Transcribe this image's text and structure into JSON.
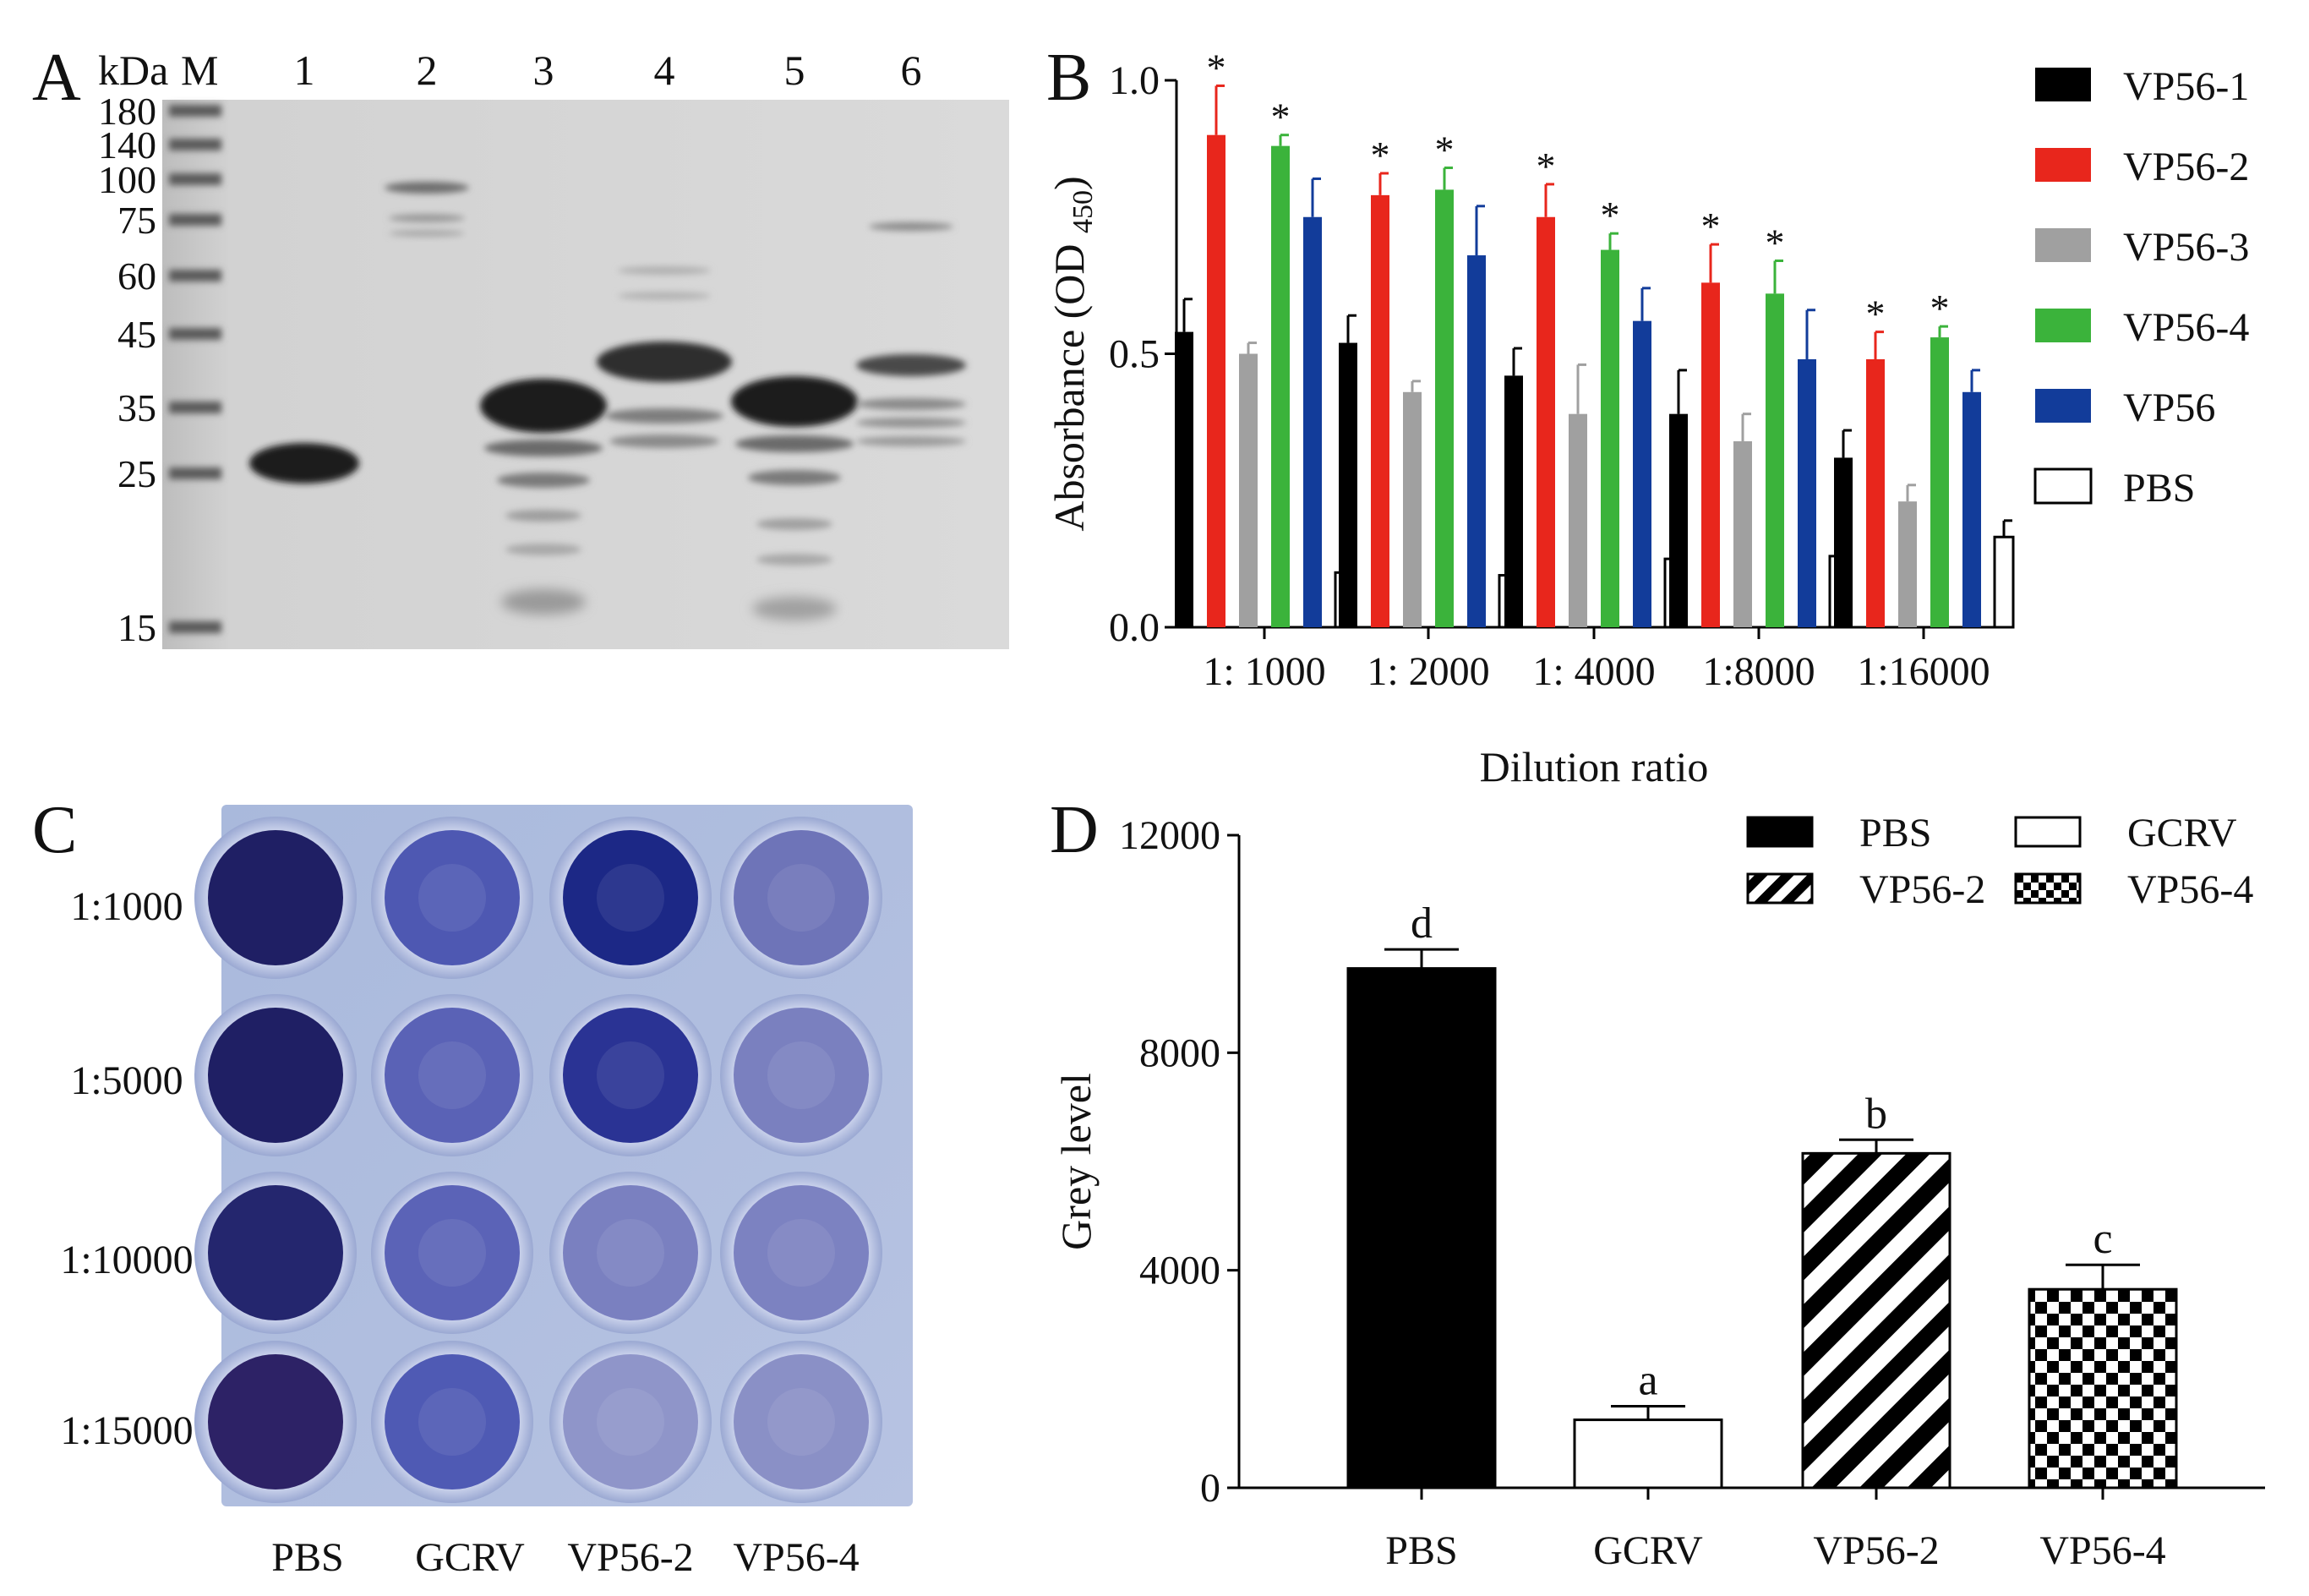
{
  "panels": {
    "A": "A",
    "B": "B",
    "C": "C",
    "D": "D"
  },
  "gel": {
    "kda_label": "kDa",
    "marker_label": "M",
    "lanes": [
      "1",
      "2",
      "3",
      "4",
      "5",
      "6"
    ],
    "marker_sizes": [
      "180",
      "140",
      "100",
      "75",
      "60",
      "45",
      "35",
      "25",
      "15"
    ]
  },
  "plate": {
    "row_labels": [
      "1:1000",
      "1:5000",
      "1:10000",
      "1:15000"
    ],
    "col_labels": [
      "PBS",
      "GCRV",
      "VP56-2",
      "VP56-4"
    ],
    "well_colors": [
      [
        "#1f1f64",
        "#4e58b2",
        "#1c2886",
        "#6e74b8"
      ],
      [
        "#1f1f64",
        "#5a62b6",
        "#2a3394",
        "#7a80bf"
      ],
      [
        "#24266e",
        "#5b63b7",
        "#7a80c0",
        "#7c82c1"
      ],
      [
        "#2d2266",
        "#4f5ab4",
        "#8f95c9",
        "#8a90c6"
      ]
    ]
  },
  "chart_data": [
    {
      "type": "bar",
      "panel": "B",
      "categories": [
        "1: 1000",
        "1: 2000",
        "1: 4000",
        "1:8000",
        "1:16000"
      ],
      "xlabel": "Dilution ratio",
      "ylabel": "Absorbance (OD",
      "ylabel_sub": "450",
      "ylabel_end": ")",
      "ylim": [
        0,
        1.0
      ],
      "yticks": [
        "0.0",
        "0.5",
        "1.0"
      ],
      "significance_marker": "*",
      "legend_position": "right",
      "series": [
        {
          "name": "VP56-1",
          "color": "#000000",
          "values": [
            0.54,
            0.52,
            0.46,
            0.39,
            0.31
          ],
          "errors": [
            0.06,
            0.05,
            0.05,
            0.08,
            0.05
          ],
          "significant": [
            false,
            false,
            false,
            false,
            false
          ]
        },
        {
          "name": "VP56-2",
          "color": "#e8261c",
          "values": [
            0.9,
            0.79,
            0.75,
            0.63,
            0.49
          ],
          "errors": [
            0.09,
            0.04,
            0.06,
            0.07,
            0.05
          ],
          "significant": [
            true,
            true,
            true,
            true,
            true
          ]
        },
        {
          "name": "VP56-3",
          "color": "#a0a0a0",
          "values": [
            0.5,
            0.43,
            0.39,
            0.34,
            0.23
          ],
          "errors": [
            0.02,
            0.02,
            0.09,
            0.05,
            0.03
          ],
          "significant": [
            false,
            false,
            false,
            false,
            false
          ]
        },
        {
          "name": "VP56-4",
          "color": "#3bb33b",
          "values": [
            0.88,
            0.8,
            0.69,
            0.61,
            0.53
          ],
          "errors": [
            0.02,
            0.04,
            0.03,
            0.06,
            0.02
          ],
          "significant": [
            true,
            true,
            true,
            true,
            true
          ]
        },
        {
          "name": "VP56",
          "color": "#123c9a",
          "values": [
            0.75,
            0.68,
            0.56,
            0.49,
            0.43
          ],
          "errors": [
            0.07,
            0.09,
            0.06,
            0.09,
            0.04
          ],
          "significant": [
            false,
            false,
            false,
            false,
            false
          ]
        },
        {
          "name": "PBS",
          "color": "#ffffff",
          "values": [
            0.1,
            0.095,
            0.125,
            0.13,
            0.165
          ],
          "errors": [
            0.003,
            0.015,
            0.035,
            0.003,
            0.03
          ],
          "significant": [
            false,
            false,
            false,
            false,
            false
          ]
        }
      ]
    },
    {
      "type": "bar",
      "panel": "D",
      "categories": [
        "PBS",
        "GCRV",
        "VP56-2",
        "VP56-4"
      ],
      "values": [
        9550,
        1250,
        6150,
        3650
      ],
      "errors": [
        350,
        250,
        250,
        450
      ],
      "letters": [
        "d",
        "a",
        "b",
        "c"
      ],
      "fills": [
        "solid",
        "open",
        "diagonal",
        "checker"
      ],
      "ylabel": "Grey level",
      "ylim": [
        0,
        12000
      ],
      "yticks": [
        "0",
        "4000",
        "8000",
        "12000"
      ],
      "legend_position": "top-right",
      "legend": [
        "PBS",
        "GCRV",
        "VP56-2",
        "VP56-4"
      ]
    }
  ]
}
